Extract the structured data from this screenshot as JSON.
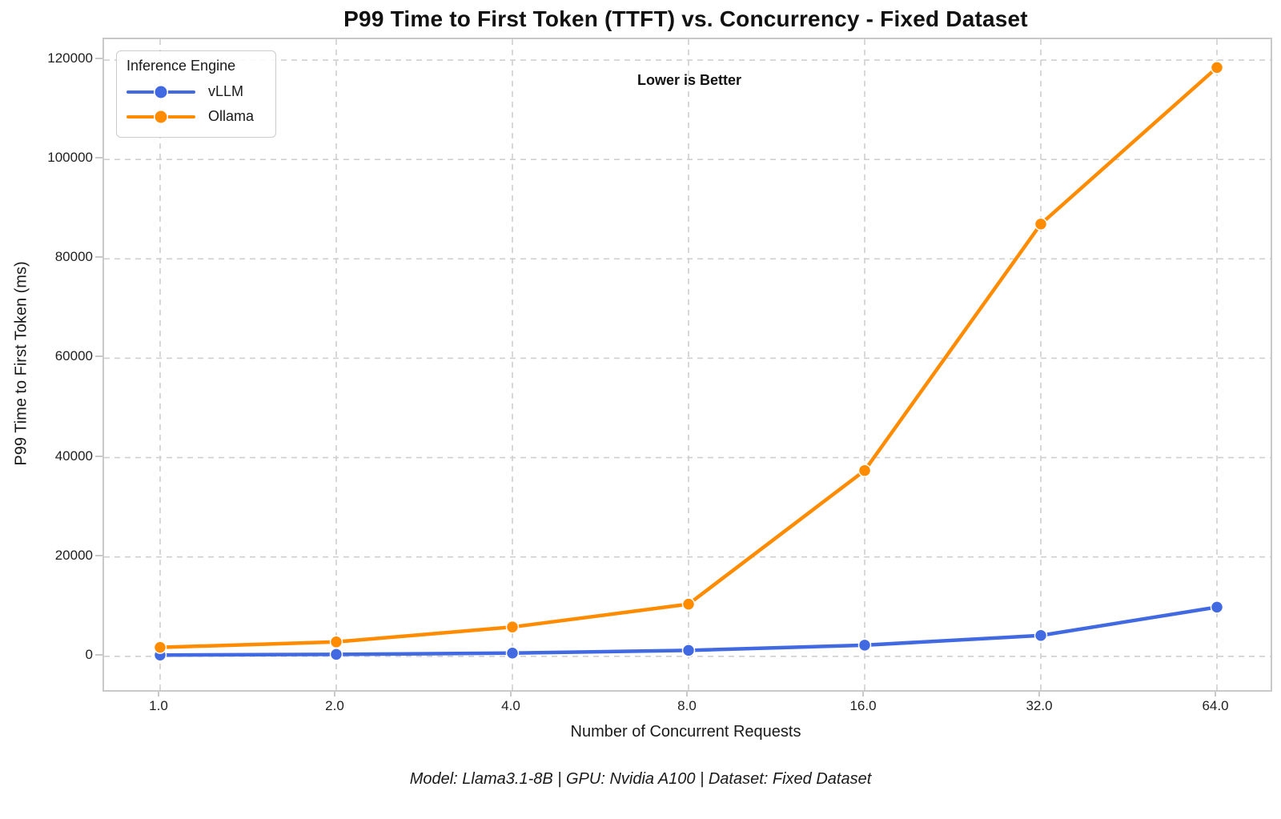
{
  "chart_data": {
    "type": "line",
    "title": "P99 Time to First Token (TTFT) vs. Concurrency - Fixed Dataset",
    "xlabel": "Number of Concurrent Requests",
    "ylabel": "P99 Time to First Token (ms)",
    "annotation": "Lower is Better",
    "footer": "Model: Llama3.1-8B | GPU: Nvidia A100 | Dataset: Fixed Dataset",
    "legend_title": "Inference Engine",
    "legend_position": "upper left",
    "grid": "dashed",
    "x": [
      1.0,
      2.0,
      4.0,
      8.0,
      16.0,
      32.0,
      64.0
    ],
    "x_tick_labels": [
      "1.0",
      "2.0",
      "4.0",
      "8.0",
      "16.0",
      "32.0",
      "64.0"
    ],
    "y_ticks": [
      0,
      20000,
      40000,
      60000,
      80000,
      100000,
      120000
    ],
    "ylim": [
      -6800,
      124200
    ],
    "series": [
      {
        "name": "vLLM",
        "color": "#4169E1",
        "values": [
          250,
          400,
          650,
          1200,
          2250,
          4200,
          9900
        ]
      },
      {
        "name": "Ollama",
        "color": "#FF8C00",
        "values": [
          1800,
          2900,
          5900,
          10500,
          37400,
          87000,
          118500
        ]
      }
    ],
    "grid_color": "#cfcfcf",
    "spine_color": "#c9c9c9"
  }
}
